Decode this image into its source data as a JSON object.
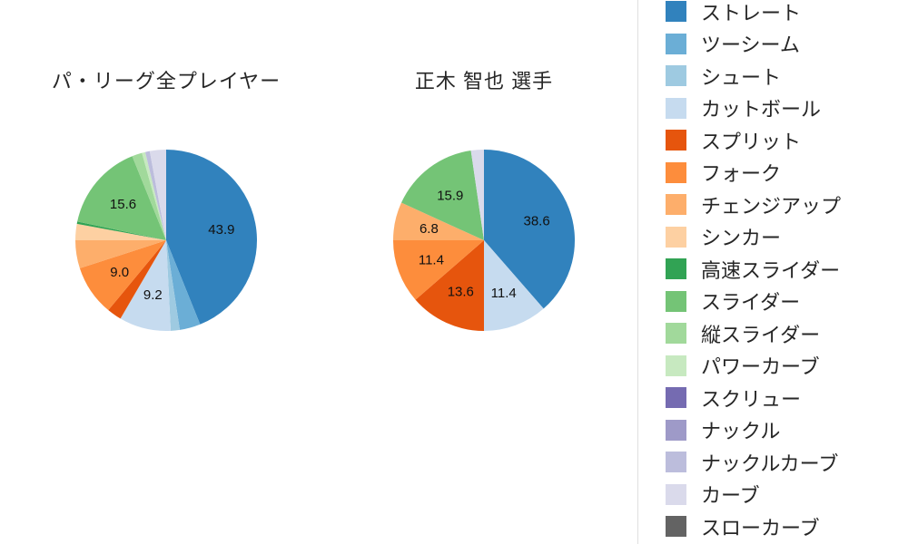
{
  "chart_data": [
    {
      "type": "pie",
      "title": "パ・リーグ全プレイヤー",
      "start_angle_deg": 0,
      "direction": "clockwise",
      "label_min": 6,
      "slices": [
        {
          "label": "ストレート",
          "value": 43.9
        },
        {
          "label": "ツーシーム",
          "value": 3.7
        },
        {
          "label": "シュート",
          "value": 1.6
        },
        {
          "label": "カットボール",
          "value": 9.2
        },
        {
          "label": "スプリット",
          "value": 2.6
        },
        {
          "label": "フォーク",
          "value": 9.0
        },
        {
          "label": "チェンジアップ",
          "value": 5.0
        },
        {
          "label": "シンカー",
          "value": 2.9
        },
        {
          "label": "高速スライダー",
          "value": 0.4
        },
        {
          "label": "スライダー",
          "value": 15.6
        },
        {
          "label": "縦スライダー",
          "value": 1.8
        },
        {
          "label": "パワーカーブ",
          "value": 0.6
        },
        {
          "label": "ナックルカーブ",
          "value": 0.8
        },
        {
          "label": "カーブ",
          "value": 2.9
        }
      ]
    },
    {
      "type": "pie",
      "title": "正木 智也 選手",
      "start_angle_deg": 0,
      "direction": "clockwise",
      "label_min": 6,
      "slices": [
        {
          "label": "ストレート",
          "value": 38.6
        },
        {
          "label": "カットボール",
          "value": 11.4
        },
        {
          "label": "スプリット",
          "value": 13.6
        },
        {
          "label": "フォーク",
          "value": 11.4
        },
        {
          "label": "チェンジアップ",
          "value": 6.8
        },
        {
          "label": "スライダー",
          "value": 15.9
        },
        {
          "label": "カーブ",
          "value": 2.3
        }
      ]
    }
  ],
  "legend": {
    "position": "right",
    "items": [
      {
        "label": "ストレート",
        "color": "#3182bd"
      },
      {
        "label": "ツーシーム",
        "color": "#6baed6"
      },
      {
        "label": "シュート",
        "color": "#9ecae1"
      },
      {
        "label": "カットボール",
        "color": "#c6dbef"
      },
      {
        "label": "スプリット",
        "color": "#e6550d"
      },
      {
        "label": "フォーク",
        "color": "#fd8d3c"
      },
      {
        "label": "チェンジアップ",
        "color": "#fdae6b"
      },
      {
        "label": "シンカー",
        "color": "#fdd0a2"
      },
      {
        "label": "高速スライダー",
        "color": "#31a354"
      },
      {
        "label": "スライダー",
        "color": "#74c476"
      },
      {
        "label": "縦スライダー",
        "color": "#a1d99b"
      },
      {
        "label": "パワーカーブ",
        "color": "#c7e9c0"
      },
      {
        "label": "スクリュー",
        "color": "#756bb1"
      },
      {
        "label": "ナックル",
        "color": "#9e9ac8"
      },
      {
        "label": "ナックルカーブ",
        "color": "#bcbddc"
      },
      {
        "label": "カーブ",
        "color": "#dadaeb"
      },
      {
        "label": "スローカーブ",
        "color": "#636363"
      }
    ]
  }
}
